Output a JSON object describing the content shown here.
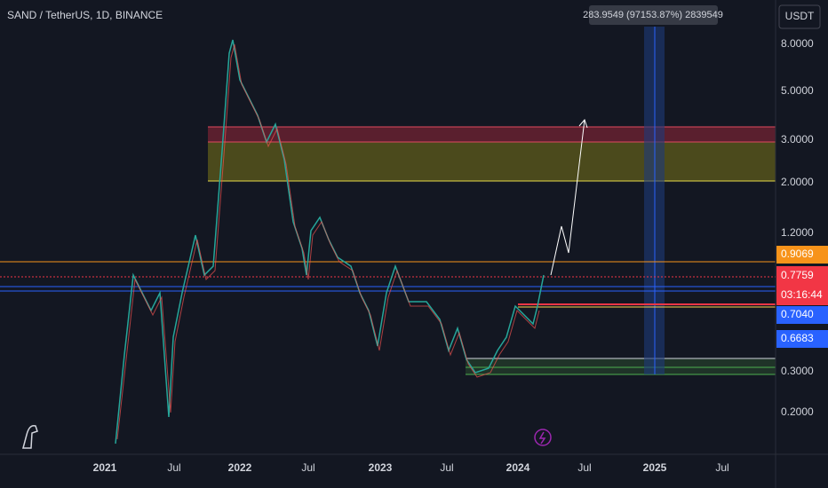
{
  "header": {
    "title": "SAND / TetherUS, 1D, BINANCE"
  },
  "measure": {
    "tooltip": "283.9549 (97153.87%) 2839549"
  },
  "price_axis": {
    "currency": "USDT",
    "labels": [
      "8.0000",
      "5.0000",
      "3.0000",
      "2.0000",
      "1.2000",
      "0.3000",
      "0.2000"
    ],
    "badges": {
      "orange": "0.9069",
      "last": "0.7759",
      "countdown": "03:16:44",
      "blue1": "0.7040",
      "blue2": "0.6683"
    }
  },
  "time_axis": {
    "labels": [
      "2021",
      "Jul",
      "2022",
      "Jul",
      "2023",
      "Jul",
      "2024",
      "Jul",
      "2025",
      "Jul"
    ]
  }
}
